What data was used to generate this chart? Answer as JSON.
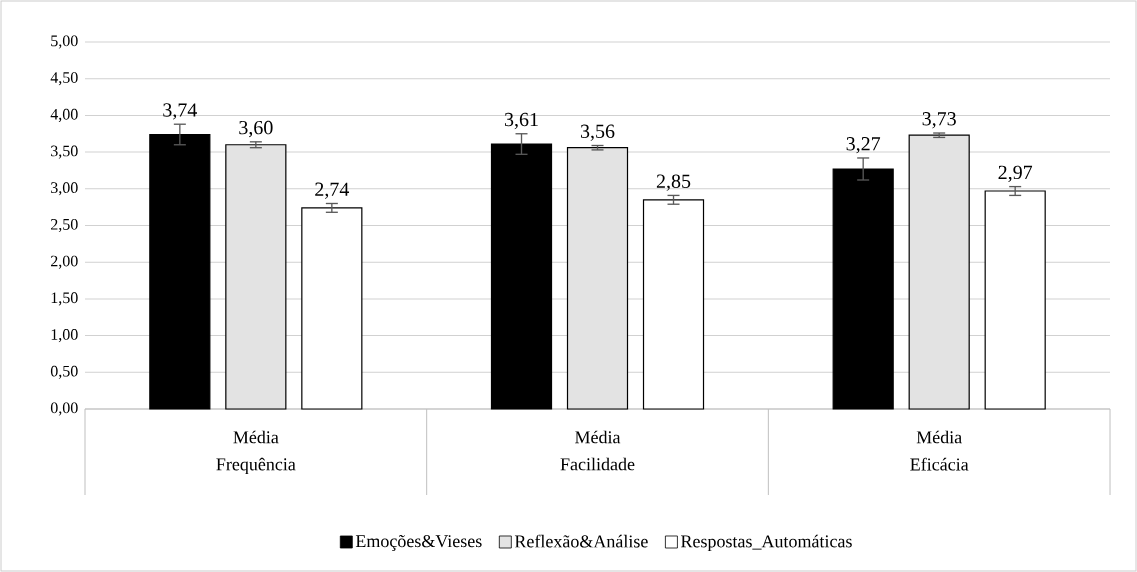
{
  "chart_data": {
    "type": "bar",
    "categories": [
      "Frequência",
      "Facilidade",
      "Eficácia"
    ],
    "annotations": [
      "Média",
      "Média",
      "Média"
    ],
    "ylim": [
      0,
      5
    ],
    "yticks": [
      {
        "value": 0,
        "label": "0,00"
      },
      {
        "value": 0.5,
        "label": "0,50"
      },
      {
        "value": 1,
        "label": "1,00"
      },
      {
        "value": 1.5,
        "label": "1,50"
      },
      {
        "value": 2,
        "label": "2,00"
      },
      {
        "value": 2.5,
        "label": "2,50"
      },
      {
        "value": 3,
        "label": "3,00"
      },
      {
        "value": 3.5,
        "label": "3,50"
      },
      {
        "value": 4,
        "label": "4,00"
      },
      {
        "value": 4.5,
        "label": "4,50"
      },
      {
        "value": 5,
        "label": "5,00"
      }
    ],
    "grid": "y",
    "legend": "bottom",
    "series": [
      {
        "name": "Emoções&Vieses",
        "color": "#000000",
        "values": [
          3.74,
          3.61,
          3.27
        ],
        "errors": [
          0.14,
          0.14,
          0.15
        ],
        "value_labels": [
          "3,74",
          "3,61",
          "3,27"
        ]
      },
      {
        "name": "Reflexão&Análise",
        "color": "#e3e3e3",
        "values": [
          3.6,
          3.56,
          3.73
        ],
        "errors": [
          0.04,
          0.03,
          0.03
        ],
        "value_labels": [
          "3,60",
          "3,56",
          "3,73"
        ]
      },
      {
        "name": "Respostas_Automáticas",
        "color": "#ffffff",
        "values": [
          2.74,
          2.85,
          2.97
        ],
        "errors": [
          0.06,
          0.06,
          0.06
        ],
        "value_labels": [
          "2,74",
          "2,85",
          "2,97"
        ]
      }
    ]
  }
}
